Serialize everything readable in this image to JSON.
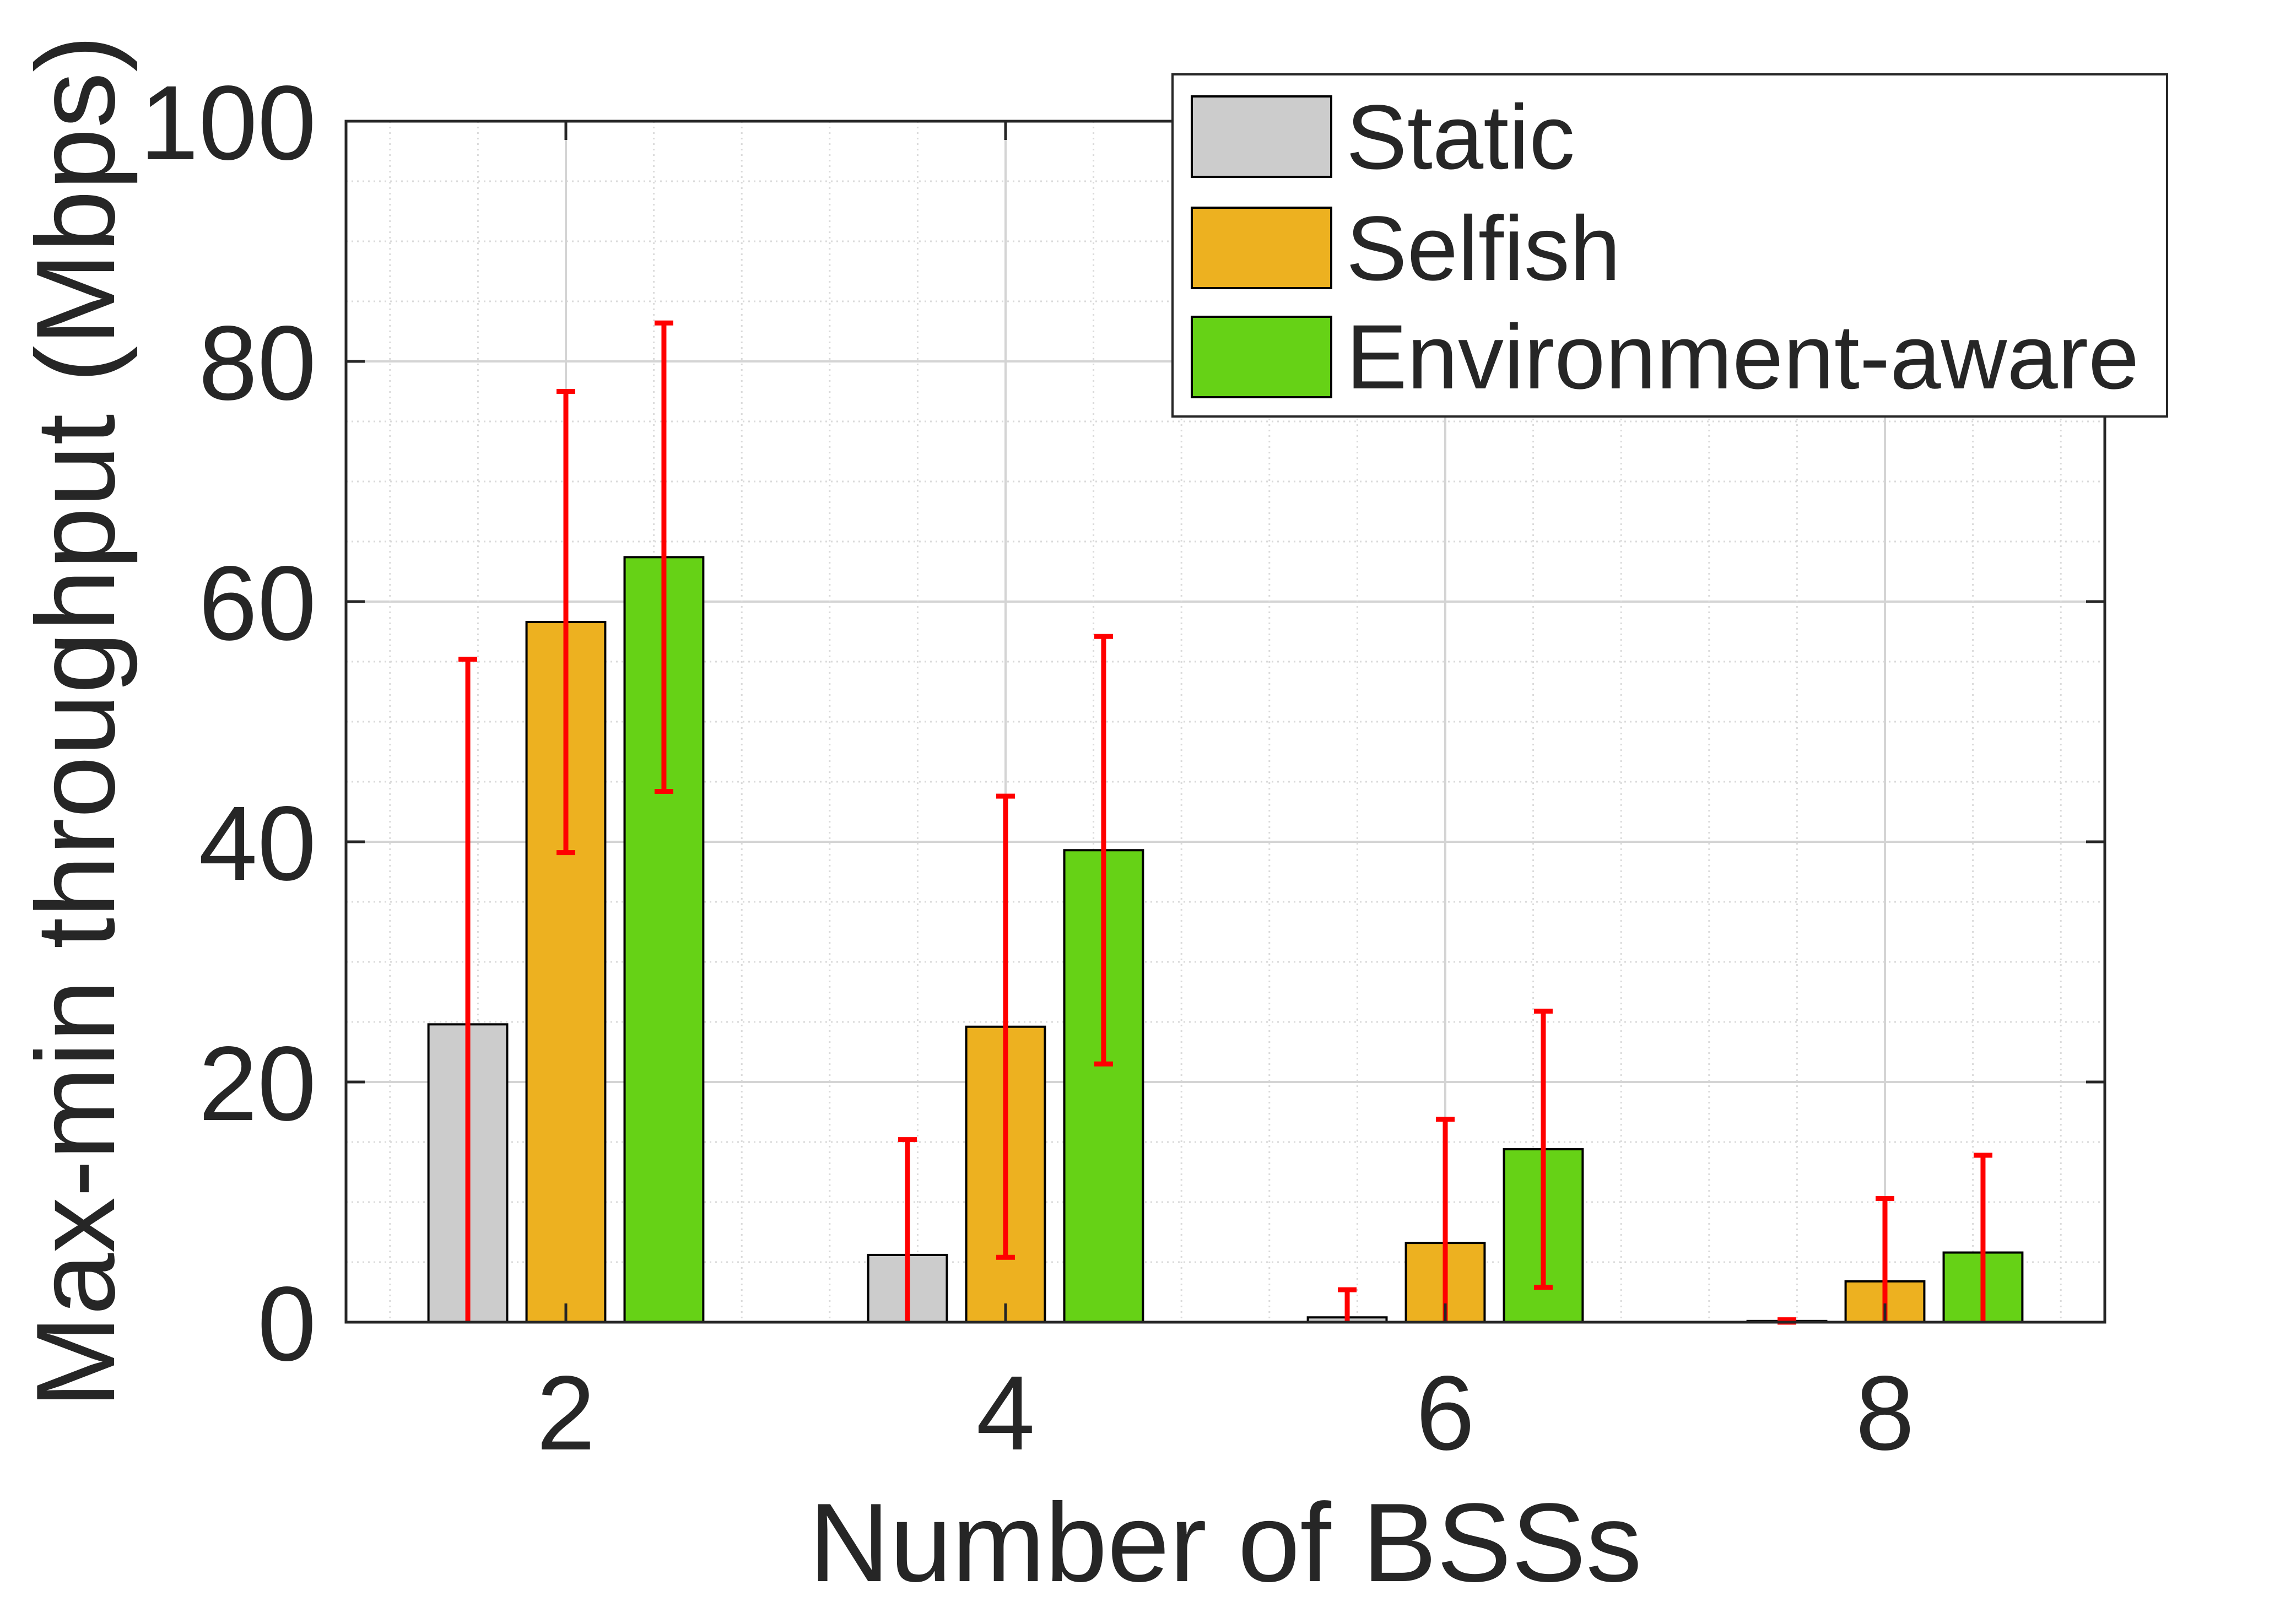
{
  "chart_data": {
    "type": "bar",
    "xlabel": "Number of BSSs",
    "ylabel": "Max-min throughput (Mbps)",
    "categories": [
      "2",
      "4",
      "6",
      "8"
    ],
    "ylim": [
      0,
      100
    ],
    "yticks": [
      0,
      20,
      40,
      60,
      80,
      100
    ],
    "grid": true,
    "minor_grid": true,
    "legend_position": "top-right",
    "error_bar_color": "#ff0000",
    "series": [
      {
        "name": "Static",
        "color": "#cccccc",
        "values": [
          24.8,
          5.6,
          0.4,
          0.1
        ],
        "errors": [
          30.4,
          9.6,
          2.3,
          0.1
        ]
      },
      {
        "name": "Selfish",
        "color": "#edb120",
        "values": [
          58.3,
          24.6,
          6.6,
          3.4
        ],
        "errors": [
          19.2,
          19.2,
          10.3,
          6.9
        ]
      },
      {
        "name": "Environment-aware",
        "color": "#66d216",
        "values": [
          63.7,
          39.3,
          14.4,
          5.8
        ],
        "errors": [
          19.5,
          17.8,
          11.5,
          8.1
        ]
      }
    ]
  }
}
